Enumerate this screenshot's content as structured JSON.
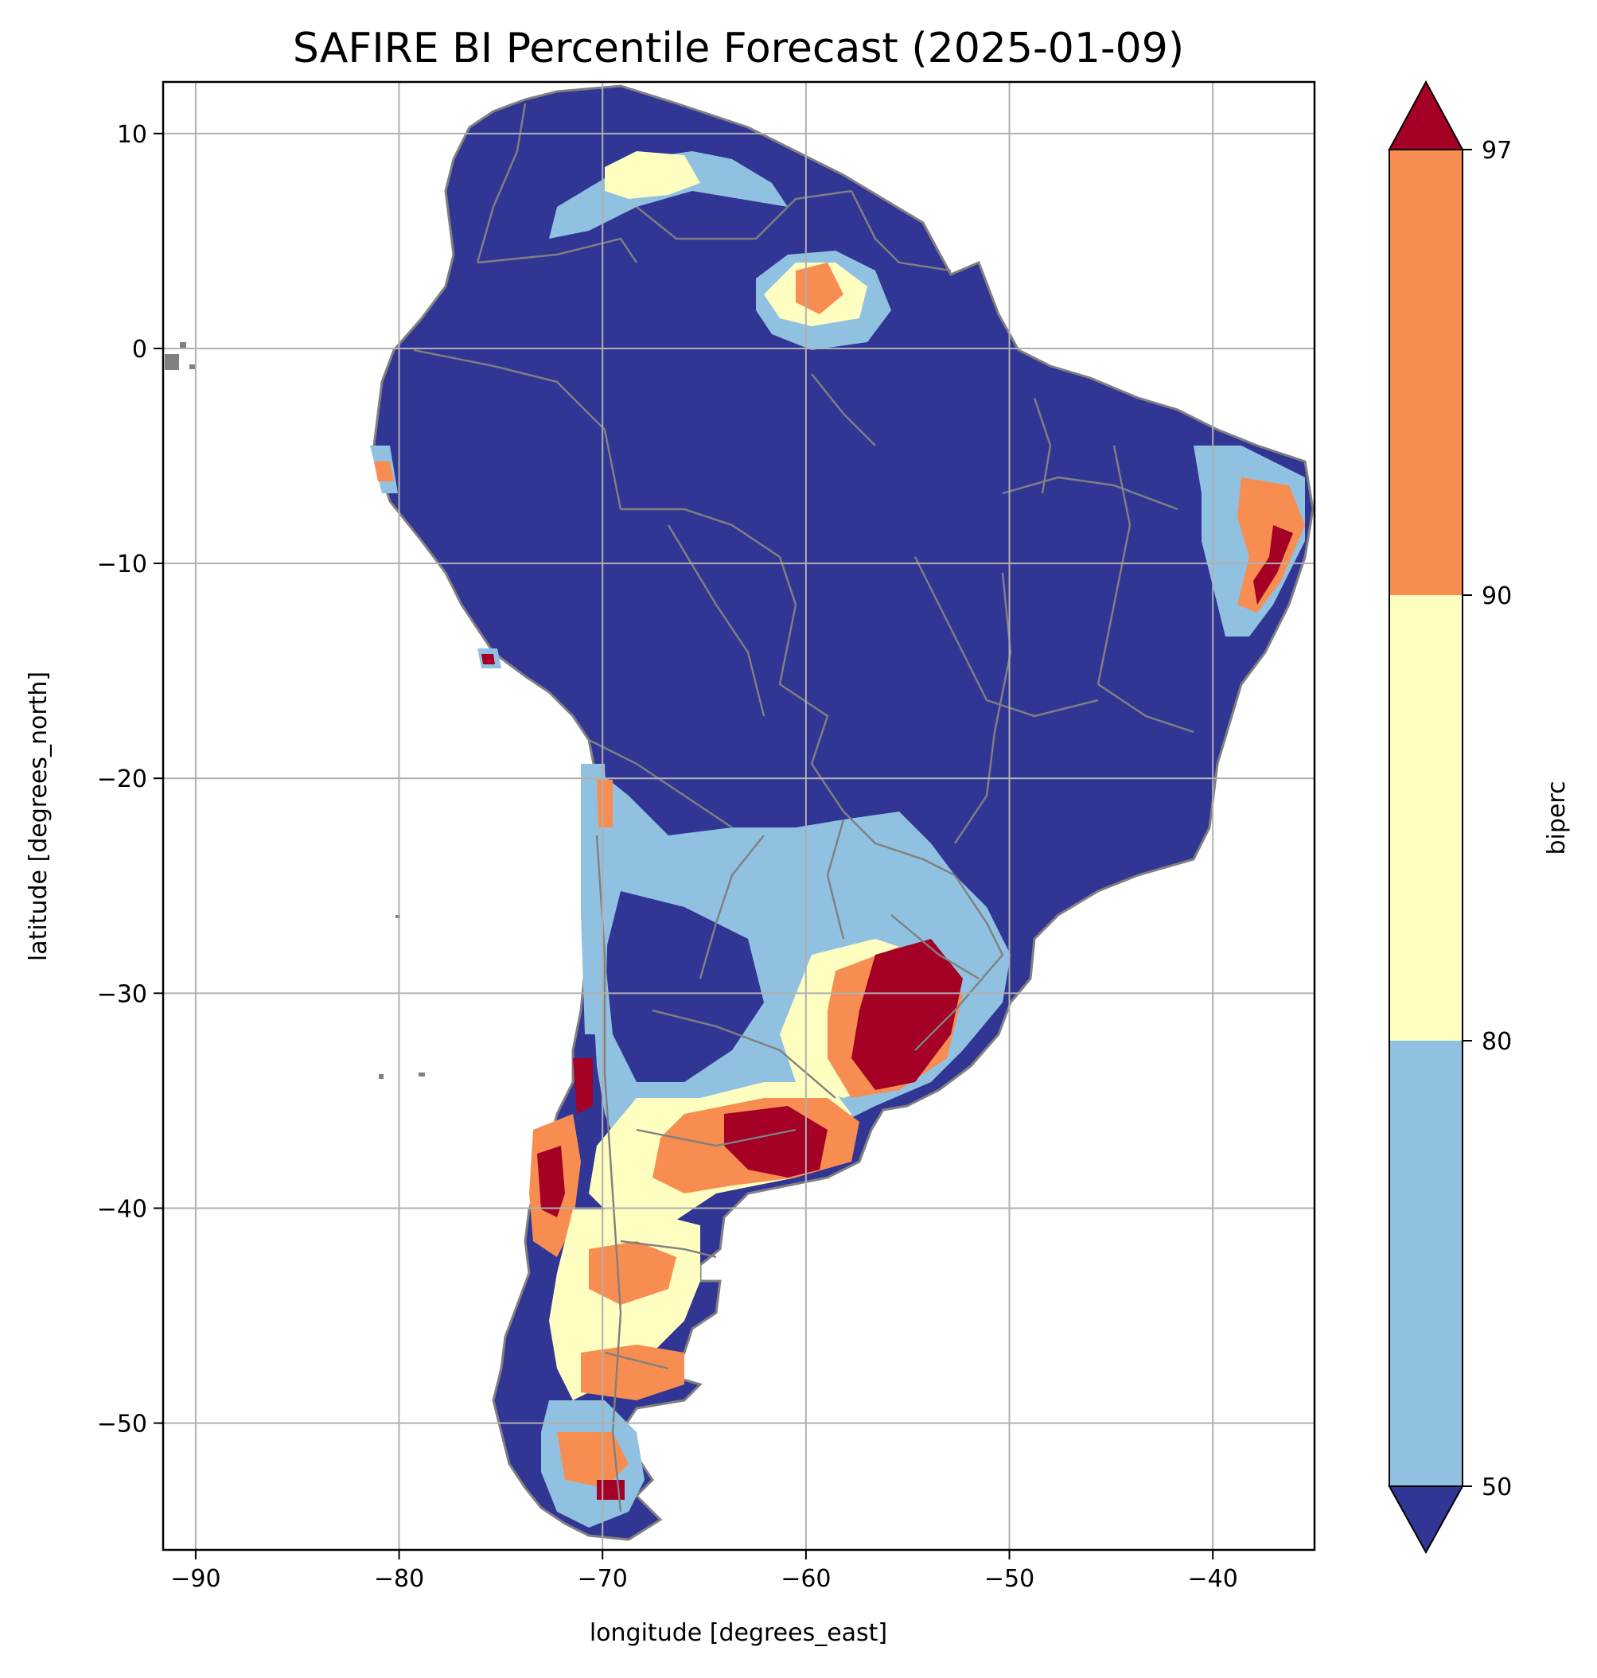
{
  "title": "SAFIRE BI Percentile Forecast (2025-01-09)",
  "x_axis": {
    "label": "longitude [degrees_east]",
    "range": [
      -91.6,
      -35.0
    ],
    "ticks": [
      {
        "value": -90,
        "label": "−90"
      },
      {
        "value": -80,
        "label": "−80"
      },
      {
        "value": -70,
        "label": "−70"
      },
      {
        "value": -60,
        "label": "−60"
      },
      {
        "value": -50,
        "label": "−50"
      },
      {
        "value": -40,
        "label": "−40"
      }
    ]
  },
  "y_axis": {
    "label": "latitude [degrees_north]",
    "range": [
      -55.9,
      12.4
    ],
    "ticks": [
      {
        "value": 10,
        "label": "10"
      },
      {
        "value": 0,
        "label": "0"
      },
      {
        "value": -10,
        "label": "−10"
      },
      {
        "value": -20,
        "label": "−20"
      },
      {
        "value": -30,
        "label": "−30"
      },
      {
        "value": -40,
        "label": "−40"
      },
      {
        "value": -50,
        "label": "−50"
      }
    ]
  },
  "grid": true,
  "colorbar": {
    "label": "biperc",
    "extend": "both",
    "position": "right",
    "ticks": [
      {
        "value": 50,
        "label": "50"
      },
      {
        "value": 80,
        "label": "80"
      },
      {
        "value": 90,
        "label": "90"
      },
      {
        "value": 97,
        "label": "97"
      }
    ],
    "colors": {
      "below_50": "#313695",
      "50_80": "#91c1e0",
      "80_90": "#fefec0",
      "90_97": "#f88d51",
      "above_97": "#a50026"
    }
  },
  "colors": {
    "boundaries": "#808080",
    "grid": "#b0b0b0"
  }
}
